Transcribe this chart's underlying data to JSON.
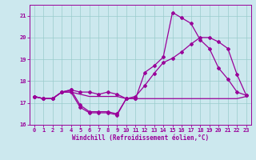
{
  "xlabel": "Windchill (Refroidissement éolien,°C)",
  "xlim": [
    -0.5,
    23.5
  ],
  "ylim": [
    16,
    21.5
  ],
  "yticks": [
    16,
    17,
    18,
    19,
    20,
    21
  ],
  "xticks": [
    0,
    1,
    2,
    3,
    4,
    5,
    6,
    7,
    8,
    9,
    10,
    11,
    12,
    13,
    14,
    15,
    16,
    17,
    18,
    19,
    20,
    21,
    22,
    23
  ],
  "bg_color": "#cce8ee",
  "grid_color": "#99cccc",
  "line_color": "#990099",
  "curve1_x": [
    0,
    1,
    2,
    3,
    4,
    5,
    6,
    7,
    8,
    9,
    10,
    11,
    12,
    13,
    14,
    15,
    16,
    17,
    18,
    19,
    20,
    21,
    22,
    23
  ],
  "curve1_y": [
    17.3,
    17.2,
    17.2,
    17.5,
    17.5,
    17.4,
    17.3,
    17.3,
    17.3,
    17.3,
    17.2,
    17.2,
    17.2,
    17.2,
    17.2,
    17.2,
    17.2,
    17.2,
    17.2,
    17.2,
    17.2,
    17.2,
    17.2,
    17.3
  ],
  "curve2_x": [
    0,
    1,
    2,
    3,
    4,
    5,
    6,
    7,
    8,
    9,
    10,
    11
  ],
  "curve2_y": [
    17.3,
    17.2,
    17.2,
    17.5,
    17.5,
    16.8,
    16.55,
    16.55,
    16.55,
    16.45,
    17.2,
    17.2
  ],
  "curve3_x": [
    0,
    1,
    2,
    3,
    4,
    5,
    6,
    7,
    8,
    9,
    10,
    11,
    12,
    13,
    14,
    15,
    16,
    17,
    18,
    19,
    20,
    21,
    22,
    23
  ],
  "curve3_y": [
    17.3,
    17.2,
    17.2,
    17.5,
    17.6,
    17.5,
    17.5,
    17.4,
    17.5,
    17.4,
    17.2,
    17.3,
    17.8,
    18.35,
    18.85,
    19.05,
    19.35,
    19.7,
    20.0,
    20.0,
    19.8,
    19.5,
    18.3,
    17.35
  ],
  "curve4_x": [
    0,
    1,
    2,
    3,
    4,
    5,
    6,
    7,
    8,
    9,
    10,
    11,
    12,
    13,
    14,
    15,
    16,
    17,
    18,
    19,
    20,
    21,
    22,
    23
  ],
  "curve4_y": [
    17.3,
    17.2,
    17.2,
    17.5,
    17.6,
    16.9,
    16.6,
    16.6,
    16.6,
    16.5,
    17.2,
    17.2,
    18.4,
    18.7,
    19.1,
    21.15,
    20.9,
    20.65,
    19.9,
    19.5,
    18.6,
    18.1,
    17.5,
    17.35
  ]
}
